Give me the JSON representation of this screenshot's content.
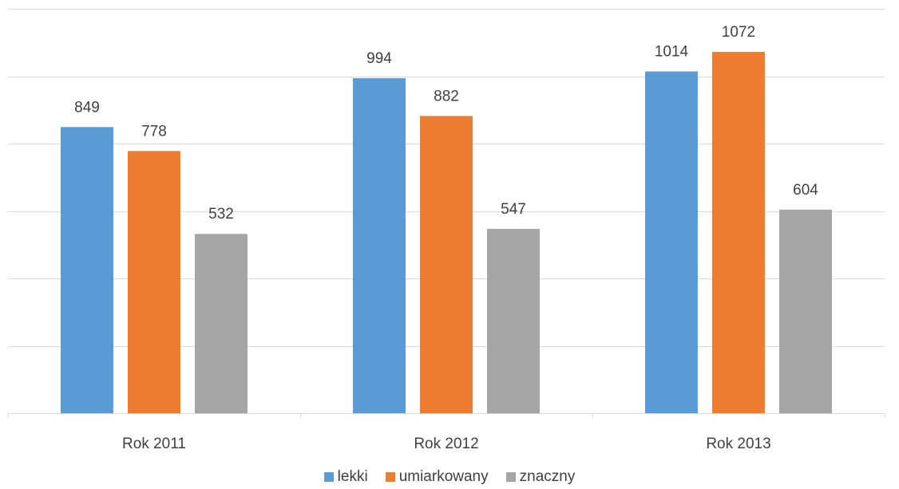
{
  "chart_data": {
    "type": "bar",
    "categories": [
      "Rok 2011",
      "Rok 2012",
      "Rok 2013"
    ],
    "series": [
      {
        "name": "lekki",
        "values": [
          849,
          994,
          1014
        ],
        "color": "#5B9BD5"
      },
      {
        "name": "umiarkowany",
        "values": [
          778,
          882,
          1072
        ],
        "color": "#ED7D31"
      },
      {
        "name": "znaczny",
        "values": [
          532,
          547,
          604
        ],
        "color": "#A5A5A5"
      }
    ],
    "title": "",
    "xlabel": "",
    "ylabel": "",
    "ylim": [
      0,
      1200
    ],
    "gridlines": true,
    "grid_step": 200,
    "legend_position": "bottom"
  }
}
